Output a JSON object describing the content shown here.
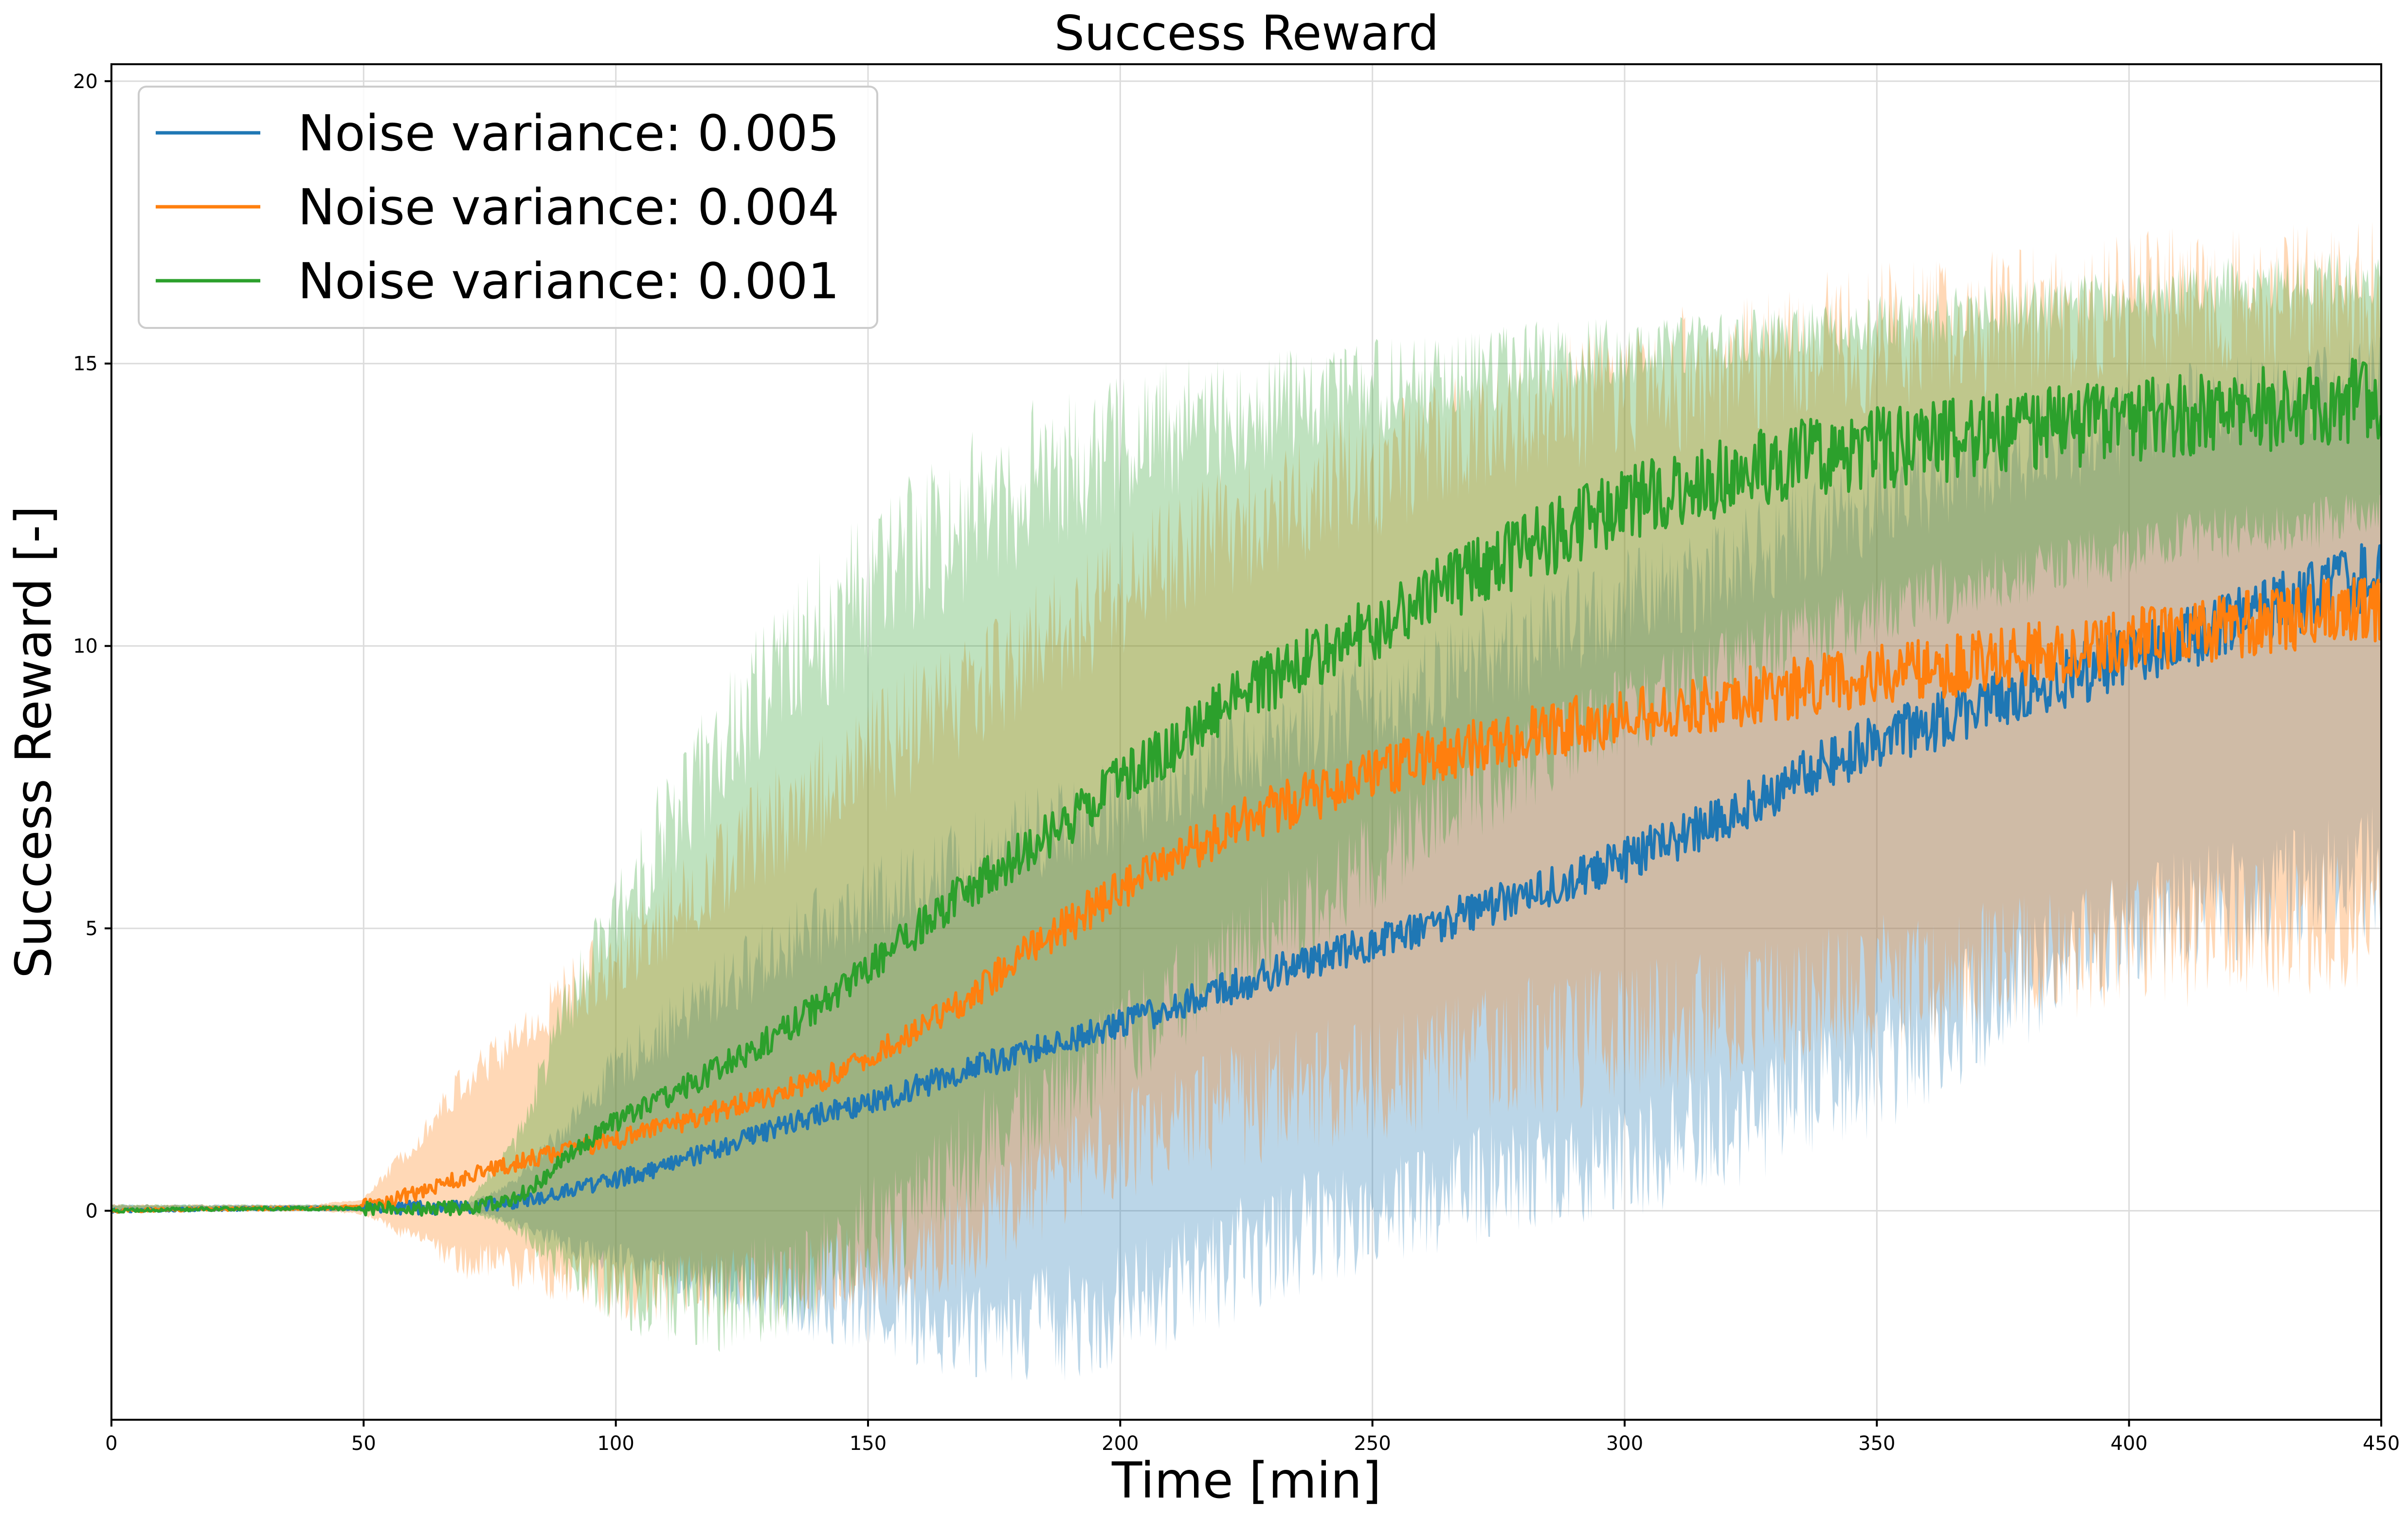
{
  "chart_data": {
    "type": "line",
    "title": "Success Reward",
    "xlabel": "Time [min]",
    "ylabel": "Success Reward [-]",
    "xlim": [
      0,
      450
    ],
    "ylim": [
      -3.7,
      20.3
    ],
    "grid": true,
    "legend_position": "top-left",
    "x_ticks": [
      "0",
      "50",
      "100",
      "150",
      "200",
      "250",
      "300",
      "350",
      "400",
      "450"
    ],
    "y_ticks": [
      "0",
      "5",
      "10",
      "15",
      "20"
    ],
    "x": [
      0,
      10,
      20,
      30,
      40,
      50,
      60,
      70,
      80,
      90,
      100,
      110,
      120,
      130,
      140,
      150,
      160,
      170,
      180,
      190,
      200,
      210,
      220,
      230,
      240,
      250,
      260,
      270,
      280,
      290,
      300,
      310,
      320,
      330,
      340,
      350,
      360,
      370,
      380,
      390,
      400,
      410,
      420,
      430,
      440,
      450
    ],
    "series": [
      {
        "name": "Noise variance: 0.005",
        "color": "#1f77b4",
        "band_opacity": 0.3,
        "mean": [
          0.0,
          0.02,
          0.03,
          0.04,
          0.04,
          0.04,
          0.05,
          0.05,
          0.15,
          0.35,
          0.55,
          0.8,
          1.1,
          1.4,
          1.7,
          1.9,
          2.2,
          2.5,
          2.8,
          3.05,
          3.3,
          3.6,
          3.9,
          4.2,
          4.5,
          4.7,
          5.0,
          5.3,
          5.6,
          5.9,
          6.2,
          6.6,
          7.0,
          7.4,
          7.9,
          8.3,
          8.6,
          8.9,
          9.2,
          9.5,
          9.8,
          10.1,
          10.4,
          10.7,
          11.0,
          11.3
        ],
        "lower": [
          0.0,
          0.0,
          0.0,
          0.0,
          0.0,
          0.0,
          0.0,
          0.0,
          -0.2,
          -0.6,
          -0.9,
          -1.1,
          -1.3,
          -1.5,
          -1.6,
          -1.7,
          -1.9,
          -2.0,
          -2.0,
          -1.9,
          -1.7,
          -1.4,
          -1.0,
          -0.6,
          -0.3,
          0.0,
          0.2,
          0.4,
          0.6,
          0.8,
          1.0,
          1.2,
          1.5,
          1.9,
          2.3,
          2.6,
          3.1,
          3.6,
          4.1,
          4.6,
          5.0,
          5.3,
          5.5,
          5.7,
          5.9,
          6.0
        ],
        "upper": [
          0.1,
          0.1,
          0.1,
          0.1,
          0.1,
          0.1,
          0.1,
          0.1,
          0.5,
          1.5,
          2.5,
          3.2,
          3.9,
          4.5,
          5.0,
          5.4,
          5.8,
          6.2,
          6.6,
          6.9,
          7.2,
          7.6,
          8.0,
          8.4,
          8.7,
          9.0,
          9.3,
          9.7,
          10.0,
          10.4,
          10.7,
          11.1,
          11.4,
          11.8,
          12.2,
          12.6,
          12.9,
          13.2,
          13.5,
          13.7,
          13.9,
          14.1,
          14.3,
          14.5,
          14.6,
          14.8
        ]
      },
      {
        "name": "Noise variance: 0.004",
        "color": "#ff7f0e",
        "band_opacity": 0.3,
        "mean": [
          0.0,
          0.02,
          0.03,
          0.04,
          0.04,
          0.08,
          0.3,
          0.6,
          0.85,
          1.05,
          1.25,
          1.5,
          1.75,
          2.0,
          2.3,
          2.7,
          3.2,
          3.8,
          4.5,
          5.1,
          5.7,
          6.2,
          6.7,
          7.1,
          7.4,
          7.7,
          8.0,
          8.2,
          8.4,
          8.6,
          8.75,
          8.9,
          9.05,
          9.2,
          9.35,
          9.5,
          9.6,
          9.7,
          9.85,
          9.95,
          10.1,
          10.2,
          10.35,
          10.45,
          10.6,
          10.7
        ],
        "lower": [
          0.0,
          0.0,
          0.0,
          0.0,
          0.0,
          -0.05,
          -0.5,
          -0.9,
          -1.0,
          -1.2,
          -1.4,
          -1.4,
          -1.3,
          -1.3,
          -1.2,
          -1.0,
          -0.8,
          -0.4,
          0.2,
          0.7,
          1.1,
          1.5,
          1.8,
          2.0,
          2.2,
          2.4,
          2.6,
          2.8,
          2.9,
          3.0,
          3.2,
          3.3,
          3.5,
          3.6,
          3.8,
          4.0,
          4.1,
          4.3,
          4.4,
          4.6,
          4.7,
          4.8,
          4.9,
          5.0,
          5.1,
          5.2
        ],
        "upper": [
          0.1,
          0.1,
          0.1,
          0.1,
          0.1,
          0.2,
          1.2,
          2.3,
          3.0,
          3.8,
          4.5,
          5.2,
          6.0,
          6.8,
          7.4,
          8.0,
          8.6,
          9.2,
          9.8,
          10.4,
          11.0,
          11.5,
          12.0,
          12.4,
          12.8,
          13.1,
          13.4,
          13.7,
          14.0,
          14.3,
          14.5,
          14.7,
          14.9,
          15.1,
          15.3,
          15.5,
          15.6,
          15.7,
          15.8,
          15.9,
          16.0,
          16.1,
          16.1,
          16.2,
          16.2,
          16.3
        ]
      },
      {
        "name": "Noise variance: 0.001",
        "color": "#2ca02c",
        "band_opacity": 0.3,
        "mean": [
          0.0,
          0.02,
          0.03,
          0.04,
          0.04,
          0.04,
          0.04,
          0.05,
          0.2,
          0.9,
          1.6,
          2.0,
          2.5,
          3.0,
          3.6,
          4.3,
          5.0,
          5.7,
          6.3,
          6.9,
          7.6,
          8.2,
          8.9,
          9.4,
          9.9,
          10.3,
          10.8,
          11.3,
          11.7,
          12.1,
          12.5,
          12.8,
          13.0,
          13.2,
          13.4,
          13.5,
          13.6,
          13.7,
          13.8,
          13.9,
          14.0,
          14.1,
          14.15,
          14.2,
          14.3,
          14.35
        ],
        "lower": [
          0.0,
          0.0,
          0.0,
          0.0,
          0.0,
          0.0,
          0.0,
          0.0,
          -0.3,
          -1.0,
          -1.4,
          -1.6,
          -1.6,
          -1.4,
          -1.0,
          -0.4,
          0.2,
          0.9,
          1.6,
          2.3,
          3.0,
          3.7,
          4.4,
          5.0,
          5.6,
          6.2,
          6.8,
          7.4,
          7.9,
          8.4,
          8.8,
          9.2,
          9.6,
          10.0,
          10.3,
          10.6,
          10.9,
          11.1,
          11.3,
          11.5,
          11.7,
          11.9,
          12.0,
          12.1,
          12.2,
          12.3
        ],
        "upper": [
          0.1,
          0.1,
          0.1,
          0.1,
          0.1,
          0.1,
          0.1,
          0.1,
          1.2,
          3.5,
          5.2,
          6.8,
          8.0,
          9.2,
          10.2,
          11.0,
          11.7,
          12.3,
          12.8,
          13.2,
          13.5,
          13.8,
          14.0,
          14.2,
          14.4,
          14.5,
          14.7,
          14.8,
          15.0,
          15.1,
          15.2,
          15.3,
          15.4,
          15.5,
          15.6,
          15.7,
          15.8,
          15.9,
          16.0,
          16.1,
          16.2,
          16.3,
          16.4,
          16.4,
          16.5,
          16.5
        ]
      }
    ]
  }
}
